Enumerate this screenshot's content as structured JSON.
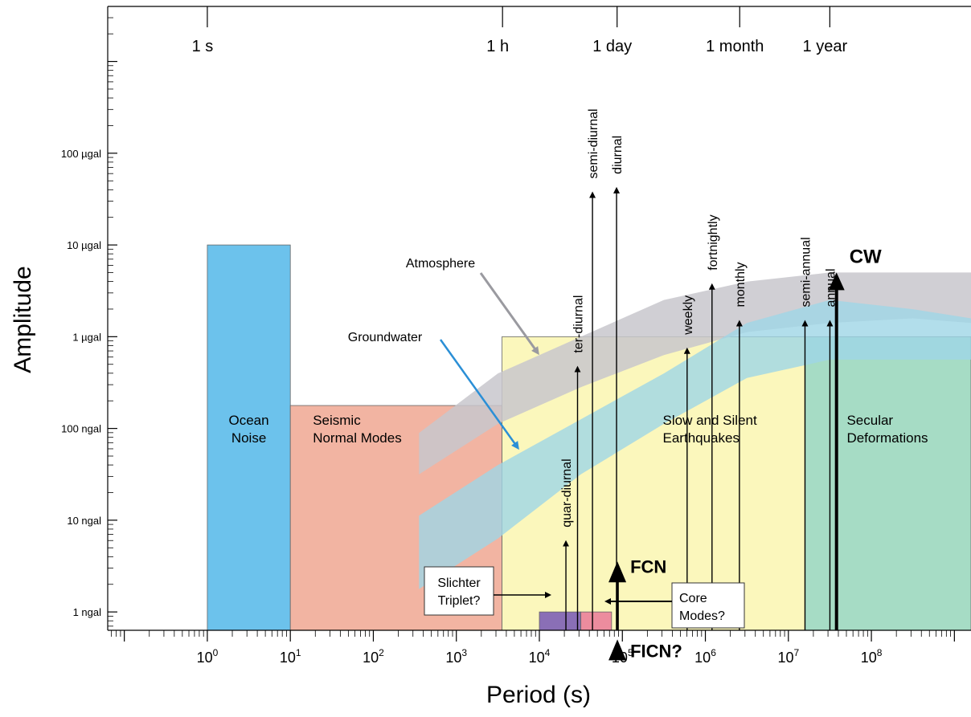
{
  "chart_data": {
    "type": "area",
    "title": "",
    "xlabel": "Period (s)",
    "ylabel": "Amplitude",
    "x_scale": "log",
    "y_scale": "log",
    "xlim_log10": [
      -1.2,
      9.2
    ],
    "ylim_log10": [
      -9.2,
      -2.4
    ],
    "x_ticks": [
      {
        "exp": 0,
        "base": "10",
        "sup": "0"
      },
      {
        "exp": 1,
        "base": "10",
        "sup": "1"
      },
      {
        "exp": 2,
        "base": "10",
        "sup": "2"
      },
      {
        "exp": 3,
        "base": "10",
        "sup": "3"
      },
      {
        "exp": 4,
        "base": "10",
        "sup": "4"
      },
      {
        "exp": 5,
        "base": "10",
        "sup": "5"
      },
      {
        "exp": 6,
        "base": "10",
        "sup": "6"
      },
      {
        "exp": 7,
        "base": "10",
        "sup": "7"
      },
      {
        "exp": 8,
        "base": "10",
        "sup": "8"
      }
    ],
    "top_ticks": [
      {
        "label": "1 s",
        "period": 1
      },
      {
        "label": "1 h",
        "period": 3600
      },
      {
        "label": "1 day",
        "period": 86400
      },
      {
        "label": "1 month",
        "period": 2592000
      },
      {
        "label": "1 year",
        "period": 31557600
      }
    ],
    "y_ticks": [
      {
        "label": "100 µgal",
        "log10": -4
      },
      {
        "label": "10 µgal",
        "log10": -5
      },
      {
        "label": "1 µgal",
        "log10": -6
      },
      {
        "label": "100 ngal",
        "log10": -7
      },
      {
        "label": "10 ngal",
        "log10": -8
      },
      {
        "label": "1 ngal",
        "log10": -9
      }
    ],
    "regions": [
      {
        "name": "Ocean Noise",
        "lines": [
          "Ocean",
          "Noise"
        ],
        "x_log10": [
          0,
          1
        ],
        "top_log10": -5,
        "color": "#6cc2ec"
      },
      {
        "name": "Seismic Normal Modes",
        "lines": [
          "Seismic",
          "Normal Modes"
        ],
        "x_log10": [
          1,
          3.55
        ],
        "top_log10": -6.75,
        "color": "#f2b4a2"
      },
      {
        "name": "Slow and Silent Earthquakes",
        "lines": [
          "Slow and Silent",
          "Earthquakes"
        ],
        "x_log10": [
          3.55,
          7.2
        ],
        "top_log10": -6,
        "color": "#fbf7bc"
      },
      {
        "name": "Secular Deformations",
        "lines": [
          "Secular",
          "Deformations"
        ],
        "x_log10": [
          7.2,
          9.2
        ],
        "top_log10": -6,
        "color": "#a6dcc5"
      },
      {
        "name": "Slichter Triplet?",
        "x_log10": [
          4.0,
          4.5
        ],
        "top_log10": -9,
        "color": "#8a6fb6"
      },
      {
        "name": "Core Modes?",
        "x_log10": [
          4.5,
          4.87
        ],
        "top_log10": -9,
        "color": "#ec8c9e"
      }
    ],
    "bands": [
      {
        "name": "Atmosphere",
        "color": "#c8c7cc",
        "opacity": 0.85,
        "upper": [
          [
            2.55,
            -7.05
          ],
          [
            3.5,
            -6.4
          ],
          [
            4.5,
            -6.0
          ],
          [
            5.5,
            -5.6
          ],
          [
            6.5,
            -5.4
          ],
          [
            7.5,
            -5.3
          ],
          [
            8.5,
            -5.3
          ],
          [
            9.2,
            -5.3
          ]
        ],
        "lower": [
          [
            2.55,
            -7.5
          ],
          [
            3.5,
            -6.95
          ],
          [
            4.5,
            -6.55
          ],
          [
            5.5,
            -6.2
          ],
          [
            6.5,
            -5.95
          ],
          [
            7.5,
            -5.85
          ],
          [
            8.5,
            -5.8
          ],
          [
            9.2,
            -5.85
          ]
        ]
      },
      {
        "name": "Groundwater",
        "color": "#9fd6e6",
        "opacity": 0.8,
        "upper": [
          [
            2.55,
            -7.95
          ],
          [
            3.5,
            -7.4
          ],
          [
            4.5,
            -6.9
          ],
          [
            5.5,
            -6.4
          ],
          [
            6.5,
            -5.85
          ],
          [
            7.5,
            -5.6
          ],
          [
            8.5,
            -5.7
          ],
          [
            9.2,
            -5.8
          ]
        ],
        "lower": [
          [
            2.55,
            -8.75
          ],
          [
            3.5,
            -8.2
          ],
          [
            4.5,
            -7.5
          ],
          [
            5.5,
            -6.95
          ],
          [
            6.5,
            -6.45
          ],
          [
            7.5,
            -6.25
          ],
          [
            8.5,
            -6.25
          ],
          [
            9.2,
            -6.25
          ]
        ]
      }
    ],
    "tidal_lines": [
      {
        "label": "quar-diurnal",
        "x_log10": 4.32,
        "top_log10": -8.2,
        "bold": false
      },
      {
        "label": "ter-diurnal",
        "x_log10": 4.46,
        "top_log10": -6.3,
        "bold": false
      },
      {
        "label": "semi-diurnal",
        "x_log10": 4.64,
        "top_log10": -4.4,
        "bold": false
      },
      {
        "label": "diurnal",
        "x_log10": 4.93,
        "top_log10": -4.35,
        "bold": false
      },
      {
        "label": "weekly",
        "x_log10": 5.78,
        "top_log10": -6.1,
        "bold": false
      },
      {
        "label": "fortnightly",
        "x_log10": 6.08,
        "top_log10": -5.4,
        "bold": false
      },
      {
        "label": "monthly",
        "x_log10": 6.41,
        "top_log10": -5.8,
        "bold": false
      },
      {
        "label": "semi-annual",
        "x_log10": 7.2,
        "top_log10": -5.8,
        "bold": false
      },
      {
        "label": "annual",
        "x_log10": 7.5,
        "top_log10": -5.8,
        "bold": false
      },
      {
        "label": "CW",
        "x_log10": 7.58,
        "top_log10": -5.3,
        "bold": true
      }
    ],
    "core_arrows": [
      {
        "label": "FCN",
        "x_log10": 4.94,
        "top_log10": -8.45
      },
      {
        "label": "FICN?",
        "x_log10": 4.94,
        "top_log10": -9.3
      }
    ],
    "annotations": {
      "atmosphere": "Atmosphere",
      "groundwater": "Groundwater",
      "slichter_lines": [
        "Slichter",
        "Triplet?"
      ],
      "core_modes_lines": [
        "Core",
        "Modes?"
      ]
    },
    "grid": false
  }
}
